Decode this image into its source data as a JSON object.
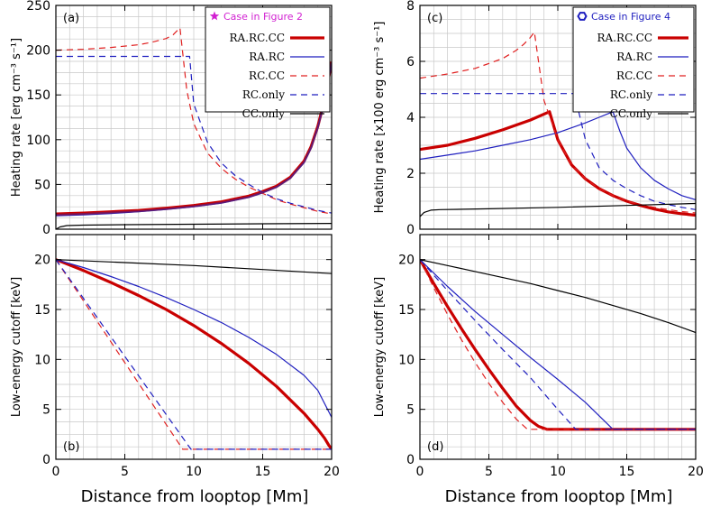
{
  "figure": {
    "xlabel_left": "Distance from looptop [Mm]",
    "xlabel_right": "Distance from looptop [Mm]"
  },
  "chart_data": [
    {
      "panel": "(a)",
      "type": "line",
      "ylabel": "Heating rate [erg cm⁻³ s⁻¹]",
      "xlim": [
        0,
        20
      ],
      "ylim": [
        0,
        250
      ],
      "xticks": [
        "0",
        "5",
        "10",
        "15",
        "20"
      ],
      "yticks": [
        "0",
        "50",
        "100",
        "150",
        "200",
        "250"
      ],
      "legend_title": "Case in Figure 2",
      "legend_title_color": "#d11fd1",
      "legend_placement": "top-right",
      "series": [
        {
          "name": "RA.RC.CC",
          "color": "#c90000",
          "dash": "solid",
          "width": 3.2,
          "x": [
            0,
            2,
            4,
            6,
            8,
            10,
            12,
            14,
            15,
            16,
            17,
            18,
            18.5,
            19,
            19.5,
            20
          ],
          "y": [
            17,
            18,
            19.5,
            21,
            23.5,
            26.5,
            30.5,
            37,
            42,
            48,
            58,
            76,
            92,
            115,
            145,
            187
          ]
        },
        {
          "name": "RA.RC",
          "color": "#1f1fbf",
          "dash": "solid",
          "width": 1.2,
          "x": [
            0,
            2,
            4,
            6,
            8,
            10,
            12,
            14,
            15,
            16,
            17,
            18,
            18.5,
            19,
            19.5,
            20
          ],
          "y": [
            15,
            16,
            17.5,
            19.5,
            22,
            25,
            29,
            35.5,
            40.5,
            47,
            57,
            74,
            90,
            113,
            143,
            185
          ]
        },
        {
          "name": "RC.CC",
          "color": "#e02020",
          "dash": "dash",
          "width": 1.2,
          "x": [
            0,
            2,
            4,
            6,
            7,
            8,
            8.5,
            9,
            9.5,
            10,
            11,
            12,
            13,
            14,
            15,
            16,
            17,
            18,
            19,
            20
          ],
          "y": [
            200,
            201,
            203,
            206,
            209,
            213,
            217,
            225,
            155,
            118,
            85,
            68,
            56,
            47,
            40,
            33,
            28,
            24,
            20,
            17
          ]
        },
        {
          "name": "RC.only",
          "color": "#1f1fbf",
          "dash": "dash",
          "width": 1.2,
          "x": [
            0,
            2,
            4,
            6,
            8,
            9.7,
            10,
            11,
            12,
            13,
            14,
            15,
            16,
            17,
            18,
            19,
            20
          ],
          "y": [
            193,
            193,
            193,
            193,
            193,
            193,
            140,
            97,
            74,
            60,
            50,
            41,
            34,
            29,
            25,
            21,
            18
          ]
        },
        {
          "name": "CC.only",
          "color": "#000000",
          "dash": "solid",
          "width": 1.2,
          "x": [
            0,
            0.3,
            0.8,
            2,
            5,
            10,
            15,
            20
          ],
          "y": [
            0,
            2.5,
            4,
            4.5,
            5,
            5.5,
            6,
            6.5
          ]
        }
      ]
    },
    {
      "panel": "(b)",
      "type": "line",
      "ylabel": "Low-energy cutoff [keV]",
      "xlim": [
        0,
        20
      ],
      "ylim": [
        0,
        22.5
      ],
      "xticks": [
        "0",
        "5",
        "10",
        "15",
        "20"
      ],
      "yticks": [
        "0",
        "5",
        "10",
        "15",
        "20"
      ],
      "series": [
        {
          "name": "RA.RC.CC",
          "color": "#c90000",
          "dash": "solid",
          "width": 3.2,
          "x": [
            0,
            2,
            4,
            6,
            8,
            10,
            12,
            14,
            16,
            18,
            19,
            19.5,
            19.8,
            20
          ],
          "y": [
            20,
            18.9,
            17.7,
            16.4,
            15.0,
            13.4,
            11.6,
            9.6,
            7.3,
            4.6,
            3.0,
            2.1,
            1.4,
            1.0
          ]
        },
        {
          "name": "RA.RC",
          "color": "#1f1fbf",
          "dash": "solid",
          "width": 1.2,
          "x": [
            0,
            2,
            4,
            6,
            8,
            10,
            12,
            14,
            16,
            18,
            19,
            20
          ],
          "y": [
            20,
            19.2,
            18.3,
            17.3,
            16.2,
            15.0,
            13.7,
            12.2,
            10.5,
            8.4,
            6.9,
            4.2
          ]
        },
        {
          "name": "RC.CC",
          "color": "#e02020",
          "dash": "dash",
          "width": 1.2,
          "x": [
            0,
            9.2,
            20
          ],
          "y": [
            20,
            1,
            1
          ]
        },
        {
          "name": "RC.only",
          "color": "#1f1fbf",
          "dash": "dash",
          "width": 1.2,
          "x": [
            0,
            9.8,
            20
          ],
          "y": [
            20,
            1,
            1
          ]
        },
        {
          "name": "CC.only",
          "color": "#000000",
          "dash": "solid",
          "width": 1.2,
          "x": [
            0,
            5,
            10,
            15,
            20
          ],
          "y": [
            20,
            19.7,
            19.4,
            19.0,
            18.6
          ]
        }
      ]
    },
    {
      "panel": "(c)",
      "type": "line",
      "ylabel": "Heating rate [x100 erg cm⁻³ s⁻¹]",
      "xlim": [
        0,
        20
      ],
      "ylim": [
        0,
        8
      ],
      "xticks": [
        "0",
        "5",
        "10",
        "15",
        "20"
      ],
      "yticks": [
        "0",
        "2",
        "4",
        "6",
        "8"
      ],
      "legend_title": "Case in Figure 4",
      "legend_title_color": "#1f1fbf",
      "legend_placement": "top-right",
      "series": [
        {
          "name": "RA.RC.CC",
          "color": "#c90000",
          "dash": "solid",
          "width": 3.2,
          "x": [
            0,
            2,
            4,
            6,
            8,
            9.4,
            10,
            11,
            12,
            13,
            14,
            15,
            16,
            17,
            18,
            19,
            20
          ],
          "y": [
            2.85,
            3.0,
            3.25,
            3.55,
            3.9,
            4.2,
            3.2,
            2.3,
            1.8,
            1.45,
            1.2,
            1.0,
            0.85,
            0.72,
            0.62,
            0.55,
            0.5
          ]
        },
        {
          "name": "RA.RC",
          "color": "#1f1fbf",
          "dash": "solid",
          "width": 1.2,
          "x": [
            0,
            2,
            4,
            6,
            8,
            10,
            12,
            13,
            14,
            14.5,
            15,
            16,
            17,
            18,
            19,
            20
          ],
          "y": [
            2.5,
            2.65,
            2.8,
            3.0,
            3.2,
            3.45,
            3.8,
            4.0,
            4.2,
            3.5,
            2.9,
            2.2,
            1.75,
            1.45,
            1.2,
            1.05
          ]
        },
        {
          "name": "RC.CC",
          "color": "#e02020",
          "dash": "dash",
          "width": 1.2,
          "x": [
            0,
            2,
            4,
            6,
            7,
            7.5,
            8,
            8.3,
            9,
            10,
            11,
            12,
            13,
            14,
            15,
            16,
            17,
            18,
            19,
            20
          ],
          "y": [
            5.4,
            5.55,
            5.75,
            6.1,
            6.4,
            6.6,
            6.85,
            7.05,
            4.6,
            3.2,
            2.3,
            1.8,
            1.45,
            1.2,
            1.0,
            0.88,
            0.78,
            0.7,
            0.63,
            0.58
          ]
        },
        {
          "name": "RC.only",
          "color": "#1f1fbf",
          "dash": "dash",
          "width": 1.2,
          "x": [
            0,
            4,
            8,
            11.2,
            12,
            13,
            14,
            15,
            16,
            17,
            18,
            19,
            20
          ],
          "y": [
            4.85,
            4.85,
            4.85,
            4.85,
            3.2,
            2.2,
            1.75,
            1.45,
            1.2,
            1.0,
            0.88,
            0.78,
            0.7
          ]
        },
        {
          "name": "CC.only",
          "color": "#000000",
          "dash": "solid",
          "width": 1.2,
          "x": [
            0,
            0.3,
            0.8,
            1.5,
            5,
            10,
            15,
            20
          ],
          "y": [
            0.45,
            0.6,
            0.68,
            0.7,
            0.73,
            0.78,
            0.85,
            0.92
          ]
        }
      ]
    },
    {
      "panel": "(d)",
      "type": "line",
      "ylabel": "Low-energy cutoff [keV]",
      "xlim": [
        0,
        20
      ],
      "ylim": [
        0,
        22.5
      ],
      "xticks": [
        "0",
        "5",
        "10",
        "15",
        "20"
      ],
      "yticks": [
        "0",
        "5",
        "10",
        "15",
        "20"
      ],
      "series": [
        {
          "name": "RA.RC.CC",
          "color": "#c90000",
          "dash": "solid",
          "width": 3.2,
          "x": [
            0,
            1,
            2,
            3,
            4,
            5,
            6,
            7,
            8,
            8.6,
            9.2,
            20
          ],
          "y": [
            20,
            17.6,
            15.3,
            13.1,
            11.0,
            9.0,
            7.1,
            5.3,
            3.9,
            3.3,
            3.0,
            3.0
          ]
        },
        {
          "name": "RA.RC",
          "color": "#1f1fbf",
          "dash": "solid",
          "width": 1.2,
          "x": [
            0,
            2,
            4,
            6,
            8,
            10,
            12,
            14,
            20
          ],
          "y": [
            20,
            17.3,
            14.8,
            12.5,
            10.2,
            8.0,
            5.7,
            3.0,
            3.0
          ]
        },
        {
          "name": "RC.CC",
          "color": "#e02020",
          "dash": "dash",
          "width": 1.2,
          "x": [
            0,
            1,
            2,
            3,
            4,
            5,
            6,
            7,
            7.8,
            20
          ],
          "y": [
            20,
            17.2,
            14.5,
            12.0,
            9.7,
            7.6,
            5.7,
            4.0,
            3.0,
            3.0
          ]
        },
        {
          "name": "RC.only",
          "color": "#1f1fbf",
          "dash": "dash",
          "width": 1.2,
          "x": [
            0,
            2,
            4,
            6,
            8,
            10,
            11.3,
            20
          ],
          "y": [
            20,
            16.9,
            13.9,
            11.0,
            8.2,
            5.0,
            3.0,
            3.0
          ]
        },
        {
          "name": "CC.only",
          "color": "#000000",
          "dash": "solid",
          "width": 1.2,
          "x": [
            0,
            2,
            4,
            6,
            8,
            10,
            12,
            14,
            16,
            18,
            20
          ],
          "y": [
            20,
            19.4,
            18.8,
            18.2,
            17.6,
            16.9,
            16.2,
            15.4,
            14.6,
            13.7,
            12.7
          ]
        }
      ]
    }
  ]
}
